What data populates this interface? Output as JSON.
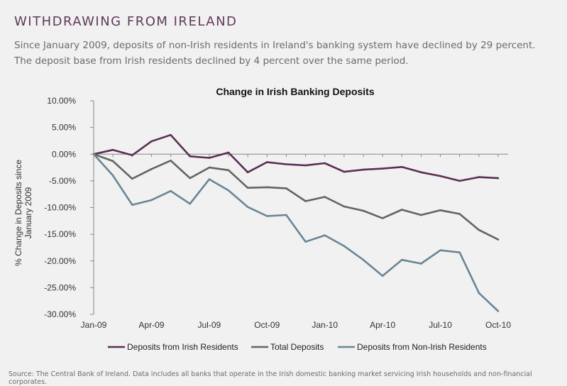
{
  "header": {
    "title": "WITHDRAWING FROM IRELAND",
    "subtitle": "Since January 2009, deposits of non-Irish residents in Ireland's banking system have declined by 29 percent. The deposit base from Irish residents declined by 4 percent over the same period."
  },
  "footer": {
    "source": "Source: The Central Bank of Ireland. Data includes all banks that operate in the Irish domestic banking market servicing Irish households and non-financial corporates."
  },
  "chart_data": {
    "type": "line",
    "title": "Change in Irish Banking Deposits",
    "xlabel": "",
    "ylabel_lines": [
      "% Change in Deposits since",
      "January 2009"
    ],
    "ylim": [
      -30,
      10
    ],
    "yticks": [
      10,
      5,
      0,
      -5,
      -10,
      -15,
      -20,
      -25,
      -30
    ],
    "ytick_labels": [
      "10.00%",
      "5.00%",
      "0.00%",
      "-5.00%",
      "-10.00%",
      "-15.00%",
      "-20.00%",
      "-25.00%",
      "-30.00%"
    ],
    "x_count": 22,
    "x_tick_labels": [
      {
        "index": 0,
        "label": "Jan-09"
      },
      {
        "index": 3,
        "label": "Apr-09"
      },
      {
        "index": 6,
        "label": "Jul-09"
      },
      {
        "index": 9,
        "label": "Oct-09"
      },
      {
        "index": 12,
        "label": "Jan-10"
      },
      {
        "index": 15,
        "label": "Apr-10"
      },
      {
        "index": 18,
        "label": "Jul-10"
      },
      {
        "index": 21,
        "label": "Oct-10"
      }
    ],
    "series": [
      {
        "name": "Deposits from Irish Residents",
        "color": "#5b2e55",
        "values": [
          0,
          0.8,
          -0.2,
          2.4,
          3.6,
          -0.4,
          -0.7,
          0.3,
          -3.4,
          -1.5,
          -1.9,
          -2.1,
          -1.7,
          -3.3,
          -2.9,
          -2.7,
          -2.4,
          -3.4,
          -4.1,
          -5.0,
          -4.3,
          -4.5
        ]
      },
      {
        "name": "Total Deposits",
        "color": "#646464",
        "values": [
          0,
          -1.3,
          -4.6,
          -2.8,
          -1.2,
          -4.5,
          -2.5,
          -3.0,
          -6.3,
          -6.2,
          -6.4,
          -8.8,
          -8.0,
          -9.8,
          -10.6,
          -12.0,
          -10.4,
          -11.4,
          -10.5,
          -11.2,
          -14.2,
          -16.0
        ]
      },
      {
        "name": "Deposits from Non-Irish Residents",
        "color": "#6a8595",
        "values": [
          0,
          -4.0,
          -9.5,
          -8.6,
          -6.9,
          -9.3,
          -4.7,
          -6.8,
          -9.9,
          -11.6,
          -11.4,
          -16.4,
          -15.2,
          -17.2,
          -19.8,
          -22.8,
          -19.8,
          -20.5,
          -18.0,
          -18.4,
          -26.0,
          -29.4
        ]
      }
    ]
  }
}
